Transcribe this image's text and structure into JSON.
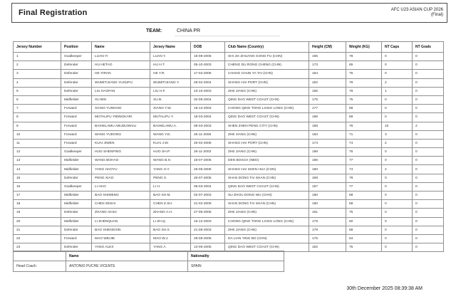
{
  "header": {
    "title": "Final Registration",
    "competition": "AFC U23 ASIAN CUP 2026",
    "stage": "(Final)"
  },
  "team": {
    "label": "TEAM:",
    "value": "CHINA PR"
  },
  "roster": {
    "columns": [
      "Jersey Number",
      "Position",
      "Name",
      "Jersey Name",
      "DOB",
      "Club Name (Country)",
      "Height (CM)",
      "Weight (KG)",
      "NT Caps",
      "NT Goals"
    ],
    "players": [
      [
        "1",
        "Goalkeeper",
        "LUAN YI",
        "LUAN Y.",
        "16-08-2005",
        "SHI JIA ZHUANG GONG FU (CHN)",
        "195",
        "78",
        "0",
        "0"
      ],
      [
        "2",
        "Defender",
        "HU HETAO",
        "HU H.T.",
        "05-10-2003",
        "CHENG DU RONG CHENG (CHN)",
        "173",
        "65",
        "0",
        "0"
      ],
      [
        "3",
        "Defender",
        "HE YIRAN",
        "HE Y.R.",
        "17-02-2006",
        "CHANG CHUN YA TAI (CHN)",
        "184",
        "75",
        "0",
        "0"
      ],
      [
        "4",
        "Defender",
        "WUMITIJIANG YUSUPU",
        "WUMITIJIANG Y.",
        "28-02-2004",
        "SHANG HAI PORT (CHN)",
        "182",
        "79",
        "2",
        "0"
      ],
      [
        "5",
        "Defender",
        "LIU HAOFAN",
        "LIU H.F.",
        "23-10-2003",
        "ZHE JIANG (CHN)",
        "185",
        "79",
        "1",
        "0"
      ],
      [
        "6",
        "Midfielder",
        "XU BIN",
        "XU B.",
        "02-05-2004",
        "QING DAO WEST COAST (CHN)",
        "175",
        "75",
        "0",
        "0"
      ],
      [
        "7",
        "Forward",
        "XIANG YUWANG",
        "XIANG Y.W.",
        "18-12-2003",
        "CHONG QING TONG LIANG LONG (CHN)",
        "177",
        "68",
        "0",
        "0"
      ],
      [
        "8",
        "Forward",
        "MUTALIFU YIBINGKARI",
        "MUTALIFU Y.",
        "18-03-2004",
        "QING DAO WEST COAST (CHN)",
        "186",
        "69",
        "0",
        "0"
      ],
      [
        "9",
        "Forward",
        "BAIHELAMU ABUDUWAILI",
        "BAIHELAMU A.",
        "08-03-2003",
        "SHEN ZHEN PENG CITY (CHN)",
        "188",
        "76",
        "10",
        "2"
      ],
      [
        "10",
        "Forward",
        "WANG YUDONG",
        "WANG Y.D.",
        "25-11-2006",
        "ZHE JIANG (CHN)",
        "183",
        "71",
        "3",
        "0"
      ],
      [
        "11",
        "Forward",
        "KUAI JIWEN",
        "KUAI J.W.",
        "26-02-2006",
        "SHANG HAI PORT (CHN)",
        "174",
        "74",
        "2",
        "0"
      ],
      [
        "12",
        "Goalkeeper",
        "HUO SHENPING",
        "HUO SH.P.",
        "26-11-2003",
        "ZHE JIANG (CHN)",
        "188",
        "76",
        "0",
        "0"
      ],
      [
        "13",
        "Midfielder",
        "WANG BOHAO",
        "WANG B.H.",
        "18-07-2005",
        "DEN BOSCH (NED)",
        "186",
        "77",
        "0",
        "0"
      ],
      [
        "14",
        "Midfielder",
        "YANG HAOYU",
        "YANG H.Y.",
        "25-05-2006",
        "SHANG HAI SHEN HUA (CHN)",
        "180",
        "74",
        "2",
        "0"
      ],
      [
        "15",
        "Defender",
        "PENG XIAO",
        "PENG X.",
        "26-07-2005",
        "SHAN DONG TAI SHAN (CHN)",
        "189",
        "78",
        "0",
        "0"
      ],
      [
        "16",
        "Goalkeeper",
        "LI HAO",
        "LI H.",
        "06-03-2004",
        "QING DAO WEST COAST (CHN)",
        "187",
        "77",
        "0",
        "0"
      ],
      [
        "17",
        "Midfielder",
        "BAO SHIMENG",
        "BAO SH.M.",
        "02-07-2003",
        "SU ZHOU DONG WU (CHN)",
        "180",
        "68",
        "0",
        "0"
      ],
      [
        "18",
        "Midfielder",
        "CHEN ZESHI",
        "CHEN Z.SH.",
        "21-02-2006",
        "SHAN DONG TAI SHAN (CHN)",
        "180",
        "68",
        "0",
        "0"
      ],
      [
        "19",
        "Defender",
        "ZHANG AIHUI",
        "ZHANG A.H.",
        "27-05-2005",
        "ZHE JIANG (CHN)",
        "191",
        "75",
        "0",
        "0"
      ],
      [
        "20",
        "Midfielder",
        "LI ZHENQUAN",
        "LI ZH.Q.",
        "16-12-2003",
        "CHONG QING TONG LIANG LONG (CHN)",
        "179",
        "60",
        "0",
        "0"
      ],
      [
        "21",
        "Defender",
        "BAO SHENGXIN",
        "BAO SH.X.",
        "21-08-2003",
        "ZHE JIANG (CHN)",
        "178",
        "68",
        "0",
        "0"
      ],
      [
        "22",
        "Forward",
        "MAO WEIJIE",
        "MAO W.J.",
        "28-05-2006",
        "DA LIAN YING BO (CHN)",
        "175",
        "64",
        "0",
        "0"
      ],
      [
        "23",
        "Defender",
        "YANG ALEX",
        "YANG A.",
        "13-06-2005",
        "QING DAO WEST COAST (CHN)",
        "182",
        "75",
        "0",
        "0"
      ]
    ]
  },
  "officials": {
    "columns": [
      "",
      "Name",
      "Nationality"
    ],
    "rows": [
      [
        "Head Coach",
        "ANTONIO PUCHE VICENTE",
        "SPAIN"
      ]
    ]
  },
  "footer": {
    "generated_at": "30th December 2025 08:39:38 AM"
  }
}
